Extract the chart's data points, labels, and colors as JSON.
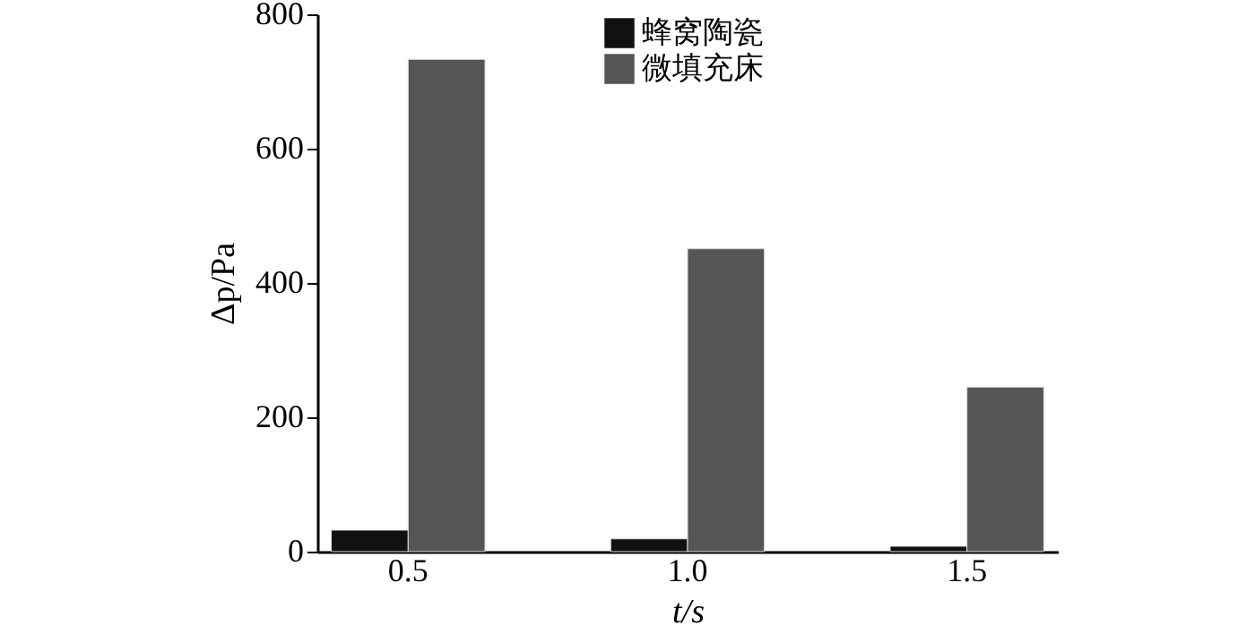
{
  "chart_data": {
    "type": "bar",
    "xlabel": "t/s",
    "ylabel": "Δp/Pa",
    "categories": [
      "0.5",
      "1.0",
      "1.5"
    ],
    "series": [
      {
        "name": "蜂窝陶瓷",
        "color": "#111111",
        "values": [
          32,
          19,
          8
        ]
      },
      {
        "name": "微填充床",
        "color": "#555555",
        "values": [
          733,
          451,
          245
        ]
      }
    ],
    "ylim": [
      0,
      800
    ],
    "yticks": [
      0,
      200,
      400,
      600,
      800
    ],
    "grid": false,
    "legend": "top"
  }
}
